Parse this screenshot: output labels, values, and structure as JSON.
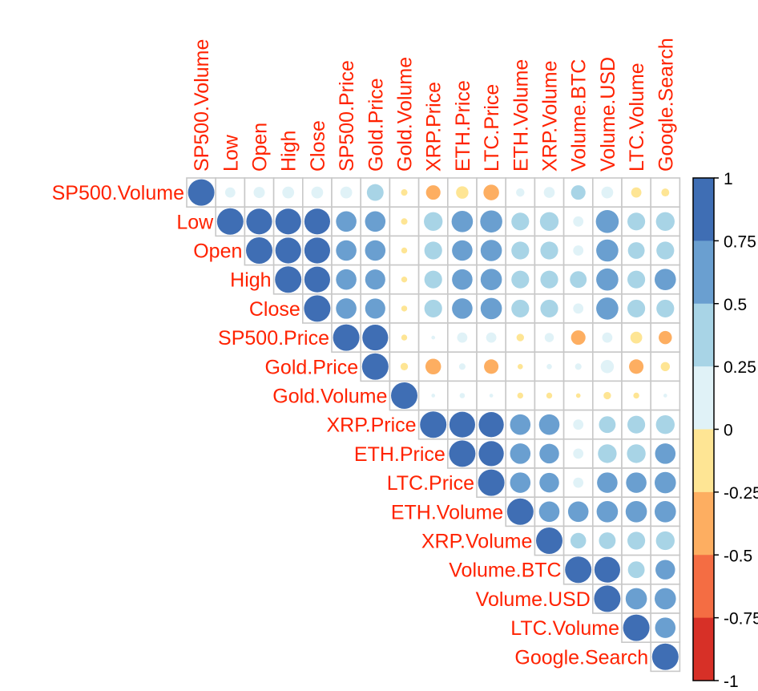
{
  "chart_data": {
    "type": "heatmap",
    "style": "correlation-circles-upper-triangle",
    "variables": [
      "SP500.Volume",
      "Low",
      "Open",
      "High",
      "Close",
      "SP500.Price",
      "Gold.Price",
      "Gold.Volume",
      "XRP.Price",
      "ETH.Price",
      "LTC.Price",
      "ETH.Volume",
      "XRP.Volume",
      "Volume.BTC",
      "Volume.USD",
      "LTC.Volume",
      "Google.Search"
    ],
    "matrix": [
      [
        1,
        0.15,
        0.18,
        0.2,
        0.2,
        0.2,
        0.4,
        -0.06,
        -0.3,
        -0.22,
        -0.35,
        0.1,
        0.17,
        0.3,
        0.2,
        -0.15,
        -0.09
      ],
      [
        null,
        1,
        0.95,
        0.95,
        0.95,
        0.6,
        0.6,
        -0.06,
        0.5,
        0.65,
        0.7,
        0.45,
        0.5,
        0.15,
        0.75,
        0.45,
        0.5
      ],
      [
        null,
        null,
        1,
        0.95,
        0.95,
        0.6,
        0.6,
        -0.05,
        0.45,
        0.6,
        0.65,
        0.45,
        0.45,
        0.15,
        0.7,
        0.4,
        0.45
      ],
      [
        null,
        null,
        null,
        1,
        0.95,
        0.6,
        0.58,
        -0.05,
        0.45,
        0.6,
        0.65,
        0.45,
        0.45,
        0.4,
        0.7,
        0.45,
        0.65
      ],
      [
        null,
        null,
        null,
        null,
        1,
        0.6,
        0.58,
        -0.05,
        0.45,
        0.6,
        0.65,
        0.45,
        0.45,
        0.15,
        0.7,
        0.45,
        0.45
      ],
      [
        null,
        null,
        null,
        null,
        null,
        1,
        0.95,
        -0.05,
        0.02,
        0.15,
        0.15,
        -0.08,
        0.12,
        -0.3,
        0.15,
        -0.2,
        -0.25
      ],
      [
        null,
        null,
        null,
        null,
        null,
        null,
        1,
        -0.08,
        -0.35,
        0.06,
        -0.3,
        -0.04,
        0.04,
        0.06,
        0.25,
        -0.3,
        -0.12
      ],
      [
        null,
        null,
        null,
        null,
        null,
        null,
        null,
        1,
        0.02,
        0.04,
        0.02,
        -0.05,
        -0.05,
        -0.03,
        -0.08,
        -0.05,
        0.02
      ],
      [
        null,
        null,
        null,
        null,
        null,
        null,
        null,
        null,
        1,
        0.95,
        0.9,
        0.6,
        0.6,
        0.15,
        0.4,
        0.45,
        0.5
      ],
      [
        null,
        null,
        null,
        null,
        null,
        null,
        null,
        null,
        null,
        1,
        0.9,
        0.6,
        0.55,
        0.15,
        0.5,
        0.5,
        0.6
      ],
      [
        null,
        null,
        null,
        null,
        null,
        null,
        null,
        null,
        null,
        null,
        1,
        0.6,
        0.55,
        0.15,
        0.6,
        0.6,
        0.65
      ],
      [
        null,
        null,
        null,
        null,
        null,
        null,
        null,
        null,
        null,
        null,
        null,
        1,
        0.6,
        0.6,
        0.65,
        0.65,
        0.65
      ],
      [
        null,
        null,
        null,
        null,
        null,
        null,
        null,
        null,
        null,
        null,
        null,
        null,
        1,
        0.35,
        0.4,
        0.45,
        0.5
      ],
      [
        null,
        null,
        null,
        null,
        null,
        null,
        null,
        null,
        null,
        null,
        null,
        null,
        null,
        1,
        0.95,
        0.4,
        0.55
      ],
      [
        null,
        null,
        null,
        null,
        null,
        null,
        null,
        null,
        null,
        null,
        null,
        null,
        null,
        null,
        1,
        0.65,
        0.65
      ],
      [
        null,
        null,
        null,
        null,
        null,
        null,
        null,
        null,
        null,
        null,
        null,
        null,
        null,
        null,
        null,
        1,
        0.6
      ],
      [
        null,
        null,
        null,
        null,
        null,
        null,
        null,
        null,
        null,
        null,
        null,
        null,
        null,
        null,
        null,
        null,
        1
      ]
    ],
    "colorbar": {
      "range": [
        -1,
        1
      ],
      "tick_labels": [
        "1",
        "0.75",
        "0.5",
        "0.25",
        "0",
        "-0.25",
        "-0.5",
        "-0.75",
        "-1"
      ],
      "colors_high_to_low": [
        "#3f6eb4",
        "#6a9fd0",
        "#a8d4e6",
        "#e0f2f7",
        "#fee594",
        "#fdae61",
        "#f46d43",
        "#d73027"
      ]
    },
    "label_color": "#ff2200",
    "grid_color": "#c8c8c8"
  }
}
